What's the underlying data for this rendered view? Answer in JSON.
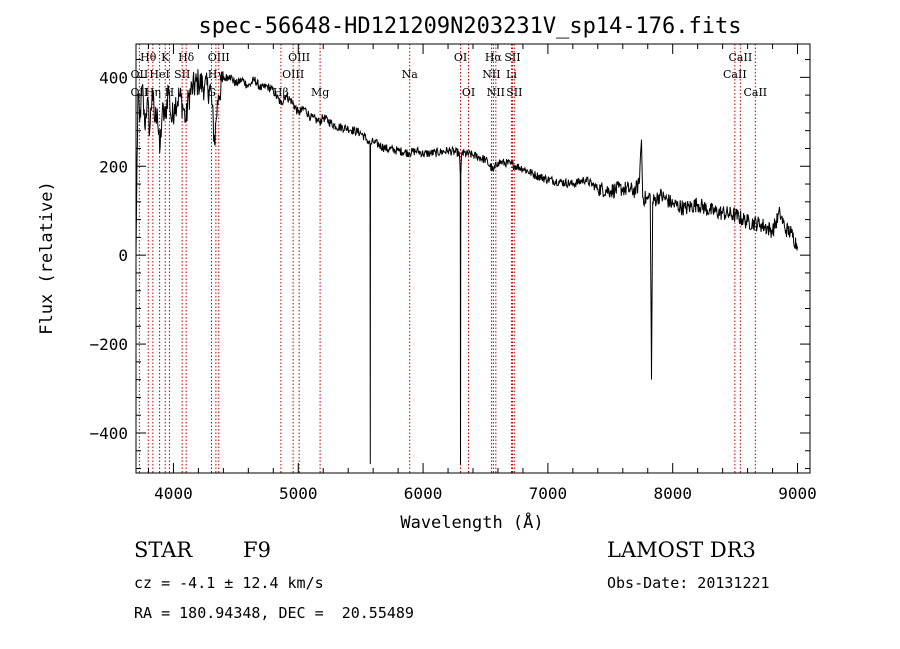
{
  "chart_data": {
    "type": "line",
    "title": "spec-56648-HD121209N203231V_sp14-176.fits",
    "xlabel": "Wavelength (Å)",
    "ylabel": "Flux (relative)",
    "xlim": [
      3700,
      9100
    ],
    "ylim": [
      -490,
      475
    ],
    "xticks": [
      4000,
      5000,
      6000,
      7000,
      8000,
      9000
    ],
    "yticks": [
      -400,
      -200,
      0,
      200,
      400
    ],
    "grid": false,
    "series": [
      {
        "name": "flux",
        "anchors": [
          [
            3700,
            0
          ],
          [
            3705,
            120
          ],
          [
            3715,
            360
          ],
          [
            3730,
            300
          ],
          [
            3750,
            380
          ],
          [
            3770,
            290
          ],
          [
            3790,
            350
          ],
          [
            3810,
            280
          ],
          [
            3830,
            370
          ],
          [
            3850,
            300
          ],
          [
            3870,
            330
          ],
          [
            3890,
            230
          ],
          [
            3910,
            320
          ],
          [
            3935,
            310
          ],
          [
            3960,
            380
          ],
          [
            3985,
            300
          ],
          [
            4010,
            340
          ],
          [
            4050,
            360
          ],
          [
            4080,
            330
          ],
          [
            4101,
            300
          ],
          [
            4120,
            355
          ],
          [
            4150,
            375
          ],
          [
            4200,
            390
          ],
          [
            4250,
            380
          ],
          [
            4300,
            370
          ],
          [
            4330,
            250
          ],
          [
            4340,
            300
          ],
          [
            4360,
            360
          ],
          [
            4400,
            395
          ],
          [
            4450,
            405
          ],
          [
            4500,
            385
          ],
          [
            4550,
            395
          ],
          [
            4600,
            380
          ],
          [
            4650,
            395
          ],
          [
            4700,
            375
          ],
          [
            4750,
            380
          ],
          [
            4800,
            370
          ],
          [
            4861,
            340
          ],
          [
            4900,
            360
          ],
          [
            4950,
            345
          ],
          [
            5000,
            320
          ],
          [
            5050,
            330
          ],
          [
            5100,
            310
          ],
          [
            5172,
            300
          ],
          [
            5200,
            310
          ],
          [
            5300,
            290
          ],
          [
            5400,
            285
          ],
          [
            5500,
            275
          ],
          [
            5550,
            260
          ],
          [
            5575,
            250
          ],
          [
            5577,
            -470
          ],
          [
            5579,
            250
          ],
          [
            5600,
            255
          ],
          [
            5700,
            240
          ],
          [
            5800,
            235
          ],
          [
            5890,
            230
          ],
          [
            5950,
            235
          ],
          [
            6000,
            228
          ],
          [
            6100,
            230
          ],
          [
            6200,
            235
          ],
          [
            6290,
            230
          ],
          [
            6298,
            180
          ],
          [
            6300,
            -470
          ],
          [
            6302,
            180
          ],
          [
            6310,
            230
          ],
          [
            6400,
            225
          ],
          [
            6500,
            215
          ],
          [
            6563,
            190
          ],
          [
            6600,
            210
          ],
          [
            6700,
            205
          ],
          [
            6800,
            195
          ],
          [
            6900,
            180
          ],
          [
            7000,
            170
          ],
          [
            7100,
            165
          ],
          [
            7200,
            160
          ],
          [
            7300,
            170
          ],
          [
            7400,
            150
          ],
          [
            7500,
            145
          ],
          [
            7600,
            150
          ],
          [
            7700,
            145
          ],
          [
            7730,
            160
          ],
          [
            7750,
            260
          ],
          [
            7760,
            130
          ],
          [
            7800,
            125
          ],
          [
            7820,
            135
          ],
          [
            7830,
            -280
          ],
          [
            7840,
            120
          ],
          [
            7900,
            135
          ],
          [
            8000,
            115
          ],
          [
            8100,
            105
          ],
          [
            8200,
            115
          ],
          [
            8300,
            100
          ],
          [
            8400,
            95
          ],
          [
            8500,
            90
          ],
          [
            8600,
            75
          ],
          [
            8700,
            70
          ],
          [
            8800,
            55
          ],
          [
            8860,
            95
          ],
          [
            8900,
            60
          ],
          [
            8950,
            50
          ],
          [
            9000,
            20
          ]
        ]
      }
    ],
    "spectral_lines": [
      {
        "label": "Hθ",
        "x": 3798,
        "row": 1
      },
      {
        "label": "OII",
        "x": 3727,
        "row": 2
      },
      {
        "label": "OII",
        "x": 3727,
        "row": 3
      },
      {
        "label": "Hη",
        "x": 3835,
        "row": 3
      },
      {
        "label": "HeI",
        "x": 3889,
        "row": 2
      },
      {
        "label": "K",
        "x": 3934,
        "row": 1
      },
      {
        "label": "H",
        "x": 3968,
        "row": 3
      },
      {
        "label": "SII",
        "x": 4070,
        "row": 2
      },
      {
        "label": "Hδ",
        "x": 4102,
        "row": 1
      },
      {
        "label": "G",
        "x": 4305,
        "row": 3
      },
      {
        "label": "Hγ",
        "x": 4340,
        "row": 2
      },
      {
        "label": "OIII",
        "x": 4363,
        "row": 1
      },
      {
        "label": "Hβ",
        "x": 4861,
        "row": 3
      },
      {
        "label": "OIII",
        "x": 4959,
        "row": 2
      },
      {
        "label": "OIII",
        "x": 5007,
        "row": 1
      },
      {
        "label": "Mg",
        "x": 5175,
        "row": 3
      },
      {
        "label": "Na",
        "x": 5893,
        "row": 2
      },
      {
        "label": "OI",
        "x": 6300,
        "row": 1
      },
      {
        "label": "OI",
        "x": 6364,
        "row": 3
      },
      {
        "label": "NII",
        "x": 6548,
        "row": 2
      },
      {
        "label": "Hα",
        "x": 6563,
        "row": 1
      },
      {
        "label": "NII",
        "x": 6583,
        "row": 3
      },
      {
        "label": "SII",
        "x": 6716,
        "row": 1
      },
      {
        "label": "SII",
        "x": 6731,
        "row": 3
      },
      {
        "label": "Li",
        "x": 6708,
        "row": 2
      },
      {
        "label": "CaII",
        "x": 8498,
        "row": 2
      },
      {
        "label": "CaII",
        "x": 8542,
        "row": 1
      },
      {
        "label": "CaII",
        "x": 8662,
        "row": 3
      }
    ]
  },
  "info": {
    "class": "STAR",
    "subclass": "F9",
    "redshift": "cz = -4.1 ± 12.4 km/s",
    "coords": "RA = 180.94348, DEC =  20.55489",
    "survey": "LAMOST DR3",
    "obs_date": "Obs-Date: 20131221"
  },
  "colors": {
    "line_marker": "#c00000",
    "spectrum": "#000000"
  }
}
